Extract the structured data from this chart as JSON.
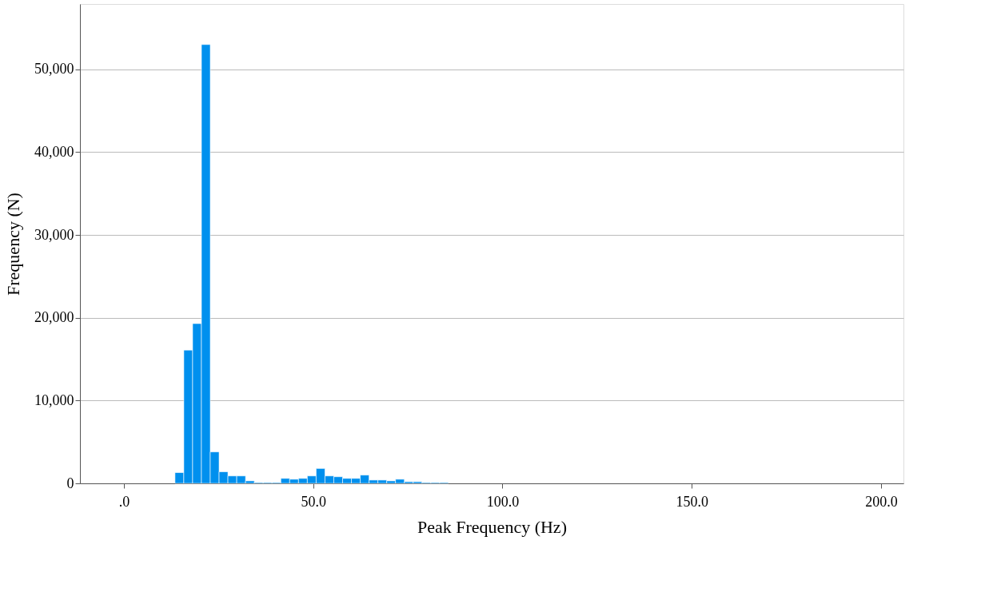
{
  "chart_data": {
    "type": "histogram",
    "xlabel": "Peak Frequency (Hz)",
    "ylabel": "Frequency (N)",
    "bins": [
      13.5,
      15.83,
      18.16,
      20.49,
      22.82,
      25.15,
      27.48,
      29.81,
      32.14,
      34.47,
      36.8,
      39.13,
      41.46,
      43.79,
      46.12,
      48.45,
      50.78,
      53.11,
      55.44,
      57.77,
      60.1,
      62.43,
      64.76,
      67.09,
      69.42,
      71.75,
      74.08,
      76.41,
      78.74,
      81.07,
      83.4,
      85.73
    ],
    "values": [
      1300,
      16100,
      19300,
      53000,
      3800,
      1400,
      900,
      900,
      300,
      100,
      100,
      100,
      600,
      500,
      600,
      900,
      1800,
      900,
      800,
      600,
      600,
      1000,
      400,
      400,
      300,
      500,
      200,
      200,
      100,
      100,
      100
    ],
    "color": "#0090ee",
    "xlim": [
      -11.6,
      205.9
    ],
    "ylim": [
      0,
      57900
    ],
    "xticks": [
      {
        "value": 0,
        "label": ".0"
      },
      {
        "value": 50,
        "label": "50.0"
      },
      {
        "value": 100,
        "label": "100.0"
      },
      {
        "value": 150,
        "label": "150.0"
      },
      {
        "value": 200,
        "label": "200.0"
      }
    ],
    "yticks": [
      0,
      {
        "value": 10000,
        "label": "10,000"
      },
      {
        "value": 20000,
        "label": "20,000"
      },
      {
        "value": 30000,
        "label": "30,000"
      },
      {
        "value": 40000,
        "label": "40,000"
      },
      {
        "value": 50000,
        "label": "50,000"
      }
    ],
    "grid": "y"
  }
}
